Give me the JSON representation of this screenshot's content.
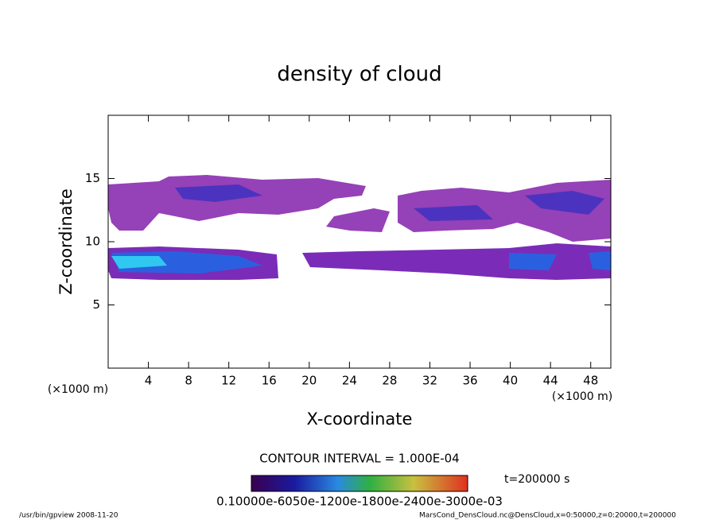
{
  "chart_data": {
    "type": "contour",
    "title": "density of cloud",
    "x_label": "X-coordinate",
    "y_label": "Z-coordinate",
    "x_unit": "(×1000 m)",
    "y_unit": "(×1000 m)",
    "xlim": [
      0,
      50
    ],
    "xticks": [
      4,
      8,
      12,
      16,
      20,
      24,
      28,
      32,
      36,
      40,
      44,
      48
    ],
    "ylim": [
      0,
      20
    ],
    "yticks": [
      5,
      10,
      15
    ],
    "contour_interval": "CONTOUR INTERVAL = 1.000E-04",
    "time": "t=200000 s",
    "colorbar_labels": "0.10000e-6050e-1200e-1800e-2400e-3000e-03",
    "footer_left": "/usr/bin/gpview   2008-11-20",
    "footer_right": "MarsCond_DensCloud.nc@DensCloud,x=0:50000,z=0:20000,t=200000"
  }
}
